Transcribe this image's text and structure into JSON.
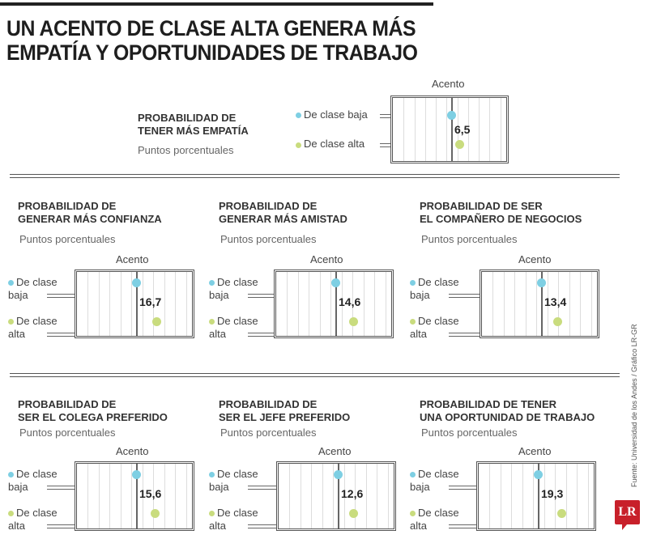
{
  "title_line1": "UN ACENTO DE CLASE ALTA GENERA MÁS",
  "title_line2": "EMPATÍA Y OPORTUNIDADES DE TRABAJO",
  "source": "Fuente: Universidad de los Andes / Gráfico LR-GR",
  "logo": "LR",
  "colors": {
    "baja": "#7ecfe3",
    "alta": "#c9dc7e"
  },
  "chart_data": {
    "type": "dot",
    "axis_label": "Acento",
    "unit": "Puntos porcentuales",
    "legend": [
      "De clase baja",
      "De clase alta"
    ],
    "panels": [
      {
        "title1": "PROBABILIDAD DE",
        "title2": "TENER MÁS EMPATÍA",
        "subtitle": "Puntos porcentuales",
        "axis_label": "Acento",
        "legend_baja": "De clase baja",
        "legend_alta": "De clase alta",
        "value_label": "6,5",
        "value": 6.5
      },
      {
        "title1": "PROBABILIDAD DE",
        "title2": "GENERAR MÁS CONFIANZA",
        "subtitle": "Puntos porcentuales",
        "axis_label": "Acento",
        "legend_baja": "De clase baja",
        "legend_alta": "De clase alta",
        "value_label": "16,7",
        "value": 16.7
      },
      {
        "title1": "PROBABILIDAD DE",
        "title2": "GENERAR MÁS AMISTAD",
        "subtitle": "Puntos porcentuales",
        "axis_label": "Acento",
        "legend_baja": "De clase baja",
        "legend_alta": "De clase alta",
        "value_label": "14,6",
        "value": 14.6
      },
      {
        "title1": "PROBABILIDAD DE SER",
        "title2": "EL COMPAÑERO DE NEGOCIOS",
        "subtitle": "Puntos porcentuales",
        "axis_label": "Acento",
        "legend_baja": "De clase baja",
        "legend_alta": "De clase alta",
        "value_label": "13,4",
        "value": 13.4
      },
      {
        "title1": "PROBABILIDAD DE",
        "title2": "SER EL COLEGA PREFERIDO",
        "subtitle": "Puntos porcentuales",
        "axis_label": "Acento",
        "legend_baja": "De clase baja",
        "legend_alta": "De clase alta",
        "value_label": "15,6",
        "value": 15.6
      },
      {
        "title1": "PROBABILIDAD DE",
        "title2": "SER EL JEFE PREFERIDO",
        "subtitle": "Puntos porcentuales",
        "axis_label": "Acento",
        "legend_baja": "De clase baja",
        "legend_alta": "De clase alta",
        "value_label": "12,6",
        "value": 12.6
      },
      {
        "title1": "PROBABILIDAD DE TENER",
        "title2": "UNA OPORTUNIDAD DE TRABAJO",
        "subtitle": "Puntos porcentuales",
        "axis_label": "Acento",
        "legend_baja": "De clase baja",
        "legend_alta": "De clase alta",
        "value_label": "19,3",
        "value": 19.3
      }
    ]
  }
}
